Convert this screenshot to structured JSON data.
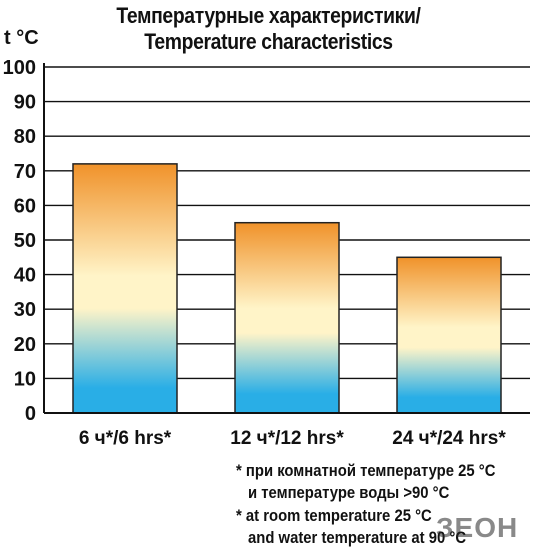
{
  "title_line1": "Температурные характеристики/",
  "title_line2": "Temperature characteristics",
  "footnotes": {
    "line1": "* при комнатной температуре 25 °С",
    "line2": "и температуре воды >90 °С",
    "line3": "* at room temperature 25 °С",
    "line4": "and water temperature at 90 °C"
  },
  "watermark": "ЗЕОН",
  "colors": {
    "bar_top": "#f0922a",
    "bar_mid": "#fff4c8",
    "bar_bottom": "#29aee6",
    "axis": "#111111"
  },
  "chart_data": {
    "type": "bar",
    "title": "Температурные характеристики/ Temperature characteristics",
    "ylabel": "t °C",
    "xlabel": "",
    "categories": [
      "6 ч*/6 hrs*",
      "12 ч*/12 hrs*",
      "24 ч*/24 hrs*"
    ],
    "values": [
      72,
      55,
      45
    ],
    "ylim": [
      0,
      100
    ],
    "yticks": [
      0,
      10,
      20,
      30,
      40,
      50,
      60,
      70,
      80,
      90,
      100
    ],
    "grid": true,
    "legend": "none"
  }
}
